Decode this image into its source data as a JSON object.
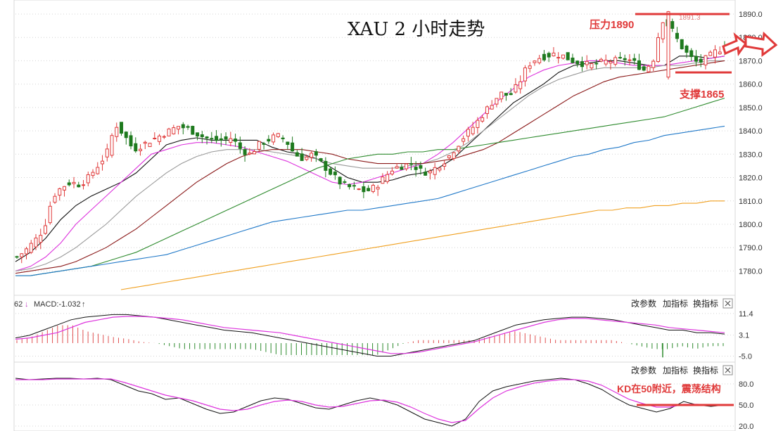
{
  "chart_data": {
    "type": "candlestick",
    "title": "XAU 2 小时走势",
    "price_axis": {
      "ticks": [
        1780,
        1790,
        1800,
        1810,
        1820,
        1830,
        1840,
        1850,
        1860,
        1870,
        1880,
        1890
      ],
      "ylim": [
        1772,
        1893
      ]
    },
    "peak_label": "1891.3",
    "annotations": {
      "resistance_label": "压力1890",
      "resistance": 1890,
      "support_label": "支撑1865",
      "support": 1865
    },
    "price_path": [
      1786,
      1789,
      1793,
      1798,
      1812,
      1816,
      1818,
      1817,
      1820,
      1825,
      1830,
      1843,
      1838,
      1832,
      1834,
      1836,
      1838,
      1840,
      1842,
      1841,
      1839,
      1837,
      1836,
      1836,
      1837,
      1832,
      1830,
      1834,
      1836,
      1838,
      1836,
      1830,
      1828,
      1830,
      1826,
      1822,
      1818,
      1816,
      1815,
      1814,
      1816,
      1820,
      1824,
      1825,
      1826,
      1823,
      1822,
      1825,
      1828,
      1833,
      1838,
      1842,
      1847,
      1852,
      1856,
      1855,
      1860,
      1868,
      1871,
      1872,
      1873,
      1872,
      1870,
      1869,
      1868,
      1869,
      1870,
      1870,
      1871,
      1869,
      1866,
      1870,
      1888,
      1884,
      1877,
      1872,
      1869,
      1871,
      1874,
      1876
    ],
    "moving_averages": [
      {
        "color": "#111111",
        "path": [
          1784,
          1788,
          1794,
          1802,
          1808,
          1812,
          1815,
          1818,
          1822,
          1828,
          1834,
          1836,
          1837,
          1836,
          1836,
          1836,
          1836,
          1833,
          1831,
          1830,
          1828,
          1824,
          1820,
          1818,
          1818,
          1819,
          1821,
          1822,
          1824,
          1828,
          1834,
          1840,
          1846,
          1852,
          1856,
          1860,
          1865,
          1868,
          1869,
          1870,
          1870,
          1869,
          1868,
          1868,
          1872,
          1872,
          1871,
          1872
        ]
      },
      {
        "color": "#dd33dd",
        "path": [
          1780,
          1782,
          1786,
          1792,
          1800,
          1806,
          1812,
          1818,
          1824,
          1830,
          1832,
          1834,
          1835,
          1835,
          1834,
          1833,
          1831,
          1829,
          1827,
          1824,
          1821,
          1818,
          1817,
          1818,
          1820,
          1822,
          1824,
          1826,
          1830,
          1835,
          1841,
          1847,
          1853,
          1858,
          1863,
          1866,
          1868,
          1869,
          1870,
          1870,
          1869,
          1868,
          1868,
          1868,
          1869,
          1870,
          1871,
          1872
        ]
      },
      {
        "color": "#999999",
        "path": [
          1780,
          1781,
          1783,
          1786,
          1790,
          1795,
          1800,
          1806,
          1812,
          1817,
          1822,
          1826,
          1829,
          1831,
          1832,
          1832,
          1832,
          1831,
          1830,
          1829,
          1828,
          1826,
          1825,
          1824,
          1824,
          1824,
          1825,
          1826,
          1828,
          1831,
          1835,
          1840,
          1845,
          1850,
          1855,
          1859,
          1862,
          1864,
          1866,
          1867,
          1867,
          1867,
          1867,
          1868,
          1868,
          1869,
          1870,
          1870
        ]
      },
      {
        "color": "#8b1a1a",
        "path": [
          1779,
          1780,
          1781,
          1782,
          1784,
          1787,
          1790,
          1794,
          1798,
          1803,
          1808,
          1813,
          1818,
          1822,
          1826,
          1829,
          1831,
          1832,
          1832,
          1832,
          1831,
          1830,
          1828,
          1827,
          1826,
          1826,
          1826,
          1826,
          1827,
          1828,
          1830,
          1832,
          1835,
          1839,
          1843,
          1847,
          1851,
          1855,
          1858,
          1861,
          1863,
          1864,
          1865,
          1866,
          1867,
          1868,
          1869,
          1870
        ]
      },
      {
        "color": "#2e8b2e",
        "path": [
          1778,
          1778,
          1779,
          1780,
          1781,
          1782,
          1784,
          1786,
          1788,
          1791,
          1794,
          1797,
          1800,
          1803,
          1806,
          1809,
          1812,
          1815,
          1818,
          1821,
          1824,
          1826,
          1828,
          1829,
          1830,
          1830,
          1831,
          1831,
          1832,
          1832,
          1833,
          1834,
          1835,
          1836,
          1837,
          1838,
          1839,
          1840,
          1841,
          1842,
          1843,
          1844,
          1845,
          1846,
          1848,
          1850,
          1852,
          1854
        ]
      },
      {
        "color": "#1f78c8",
        "path": [
          1778,
          1778,
          1779,
          1780,
          1781,
          1782,
          1783,
          1784,
          1785,
          1786,
          1787,
          1789,
          1791,
          1793,
          1795,
          1797,
          1799,
          1801,
          1802,
          1803,
          1804,
          1805,
          1806,
          1806,
          1807,
          1808,
          1809,
          1810,
          1811,
          1813,
          1815,
          1817,
          1819,
          1821,
          1823,
          1825,
          1827,
          1829,
          1830,
          1832,
          1833,
          1835,
          1836,
          1838,
          1839,
          1840,
          1841,
          1842
        ]
      },
      {
        "color": "#f0a020",
        "path": [
          1772,
          1773,
          1774,
          1775,
          1776,
          1777,
          1778,
          1779,
          1780,
          1781,
          1782,
          1783,
          1784,
          1785,
          1786,
          1787,
          1788,
          1789,
          1790,
          1791,
          1792,
          1793,
          1794,
          1795,
          1796,
          1797,
          1798,
          1799,
          1800,
          1801,
          1802,
          1803,
          1804,
          1805,
          1806,
          1806,
          1807,
          1807,
          1808,
          1808,
          1809,
          1809,
          1810,
          1810
        ]
      }
    ],
    "macd": {
      "label": "MACD:-1.032",
      "prefix": "62",
      "ticks": [
        "11.4",
        "3.1",
        "-5.0"
      ],
      "tick_values": [
        11.4,
        3.1,
        -5.0
      ],
      "ylim": [
        -6.5,
        13
      ],
      "dif": [
        2,
        3,
        5,
        7,
        9,
        10,
        10.5,
        11,
        11,
        10.5,
        10,
        9,
        8,
        7,
        6,
        5,
        4.5,
        4,
        3,
        2,
        1,
        0,
        -1,
        -2,
        -3,
        -4,
        -5,
        -5,
        -4,
        -3,
        -2,
        -1,
        0,
        1,
        3,
        5,
        7,
        8,
        9,
        9.5,
        10,
        10,
        9.5,
        9,
        8,
        7,
        6,
        5,
        5,
        4,
        4,
        3.5
      ],
      "dea": [
        1.5,
        2,
        3,
        4,
        6,
        8,
        9,
        10,
        10.3,
        10.3,
        10,
        9.5,
        9,
        8,
        7,
        6,
        5.5,
        5,
        4.5,
        4,
        3,
        2,
        1,
        0,
        -1,
        -2,
        -3,
        -4,
        -4,
        -3.5,
        -2.5,
        -1.5,
        -0.5,
        0.5,
        2,
        3.5,
        5,
        6.5,
        8,
        9,
        9.5,
        9.5,
        9,
        8.5,
        8,
        7.5,
        7,
        6,
        5.5,
        5,
        4.5,
        4
      ],
      "hist": [
        0.5,
        1,
        2,
        3,
        3,
        2,
        1.5,
        1,
        0.7,
        0.2,
        0,
        -0.5,
        -1,
        -1,
        -1,
        -1,
        -1,
        -1,
        -1.5,
        -2,
        -2,
        -2,
        -2,
        -2,
        -2,
        -2,
        -2,
        -1,
        0,
        0.5,
        0.5,
        0.5,
        0.5,
        0.5,
        1,
        1.5,
        2,
        1.5,
        1,
        0.5,
        0.5,
        0.5,
        0.5,
        0.5,
        0,
        -0.5,
        -1,
        -1,
        -0.5,
        -1,
        -0.5,
        -0.5
      ]
    },
    "kd": {
      "ticks": [
        "80.0",
        "50.0",
        "20.0"
      ],
      "tick_values": [
        80,
        50,
        20
      ],
      "ylim": [
        16,
        96
      ],
      "annotation": "KD在50附近，震荡结构",
      "k": [
        88,
        86,
        87,
        88,
        88,
        87,
        88,
        86,
        78,
        70,
        66,
        58,
        60,
        52,
        44,
        38,
        40,
        48,
        56,
        60,
        58,
        52,
        46,
        44,
        50,
        56,
        60,
        56,
        50,
        40,
        30,
        25,
        20,
        30,
        55,
        70,
        76,
        80,
        84,
        86,
        88,
        86,
        80,
        72,
        60,
        50,
        45,
        40,
        45,
        55,
        50,
        48,
        50
      ],
      "d": [
        86,
        86,
        86,
        87,
        87,
        87,
        87,
        87,
        82,
        76,
        70,
        64,
        60,
        56,
        50,
        44,
        42,
        44,
        50,
        55,
        57,
        55,
        50,
        47,
        48,
        52,
        56,
        57,
        54,
        47,
        38,
        30,
        25,
        28,
        45,
        60,
        70,
        76,
        81,
        84,
        86,
        86,
        84,
        78,
        68,
        58,
        52,
        47,
        47,
        51,
        51,
        50,
        50
      ]
    }
  },
  "toolbar": {
    "change_params": "改参数",
    "add_indicator": "加指标",
    "switch_indicator": "换指标"
  }
}
